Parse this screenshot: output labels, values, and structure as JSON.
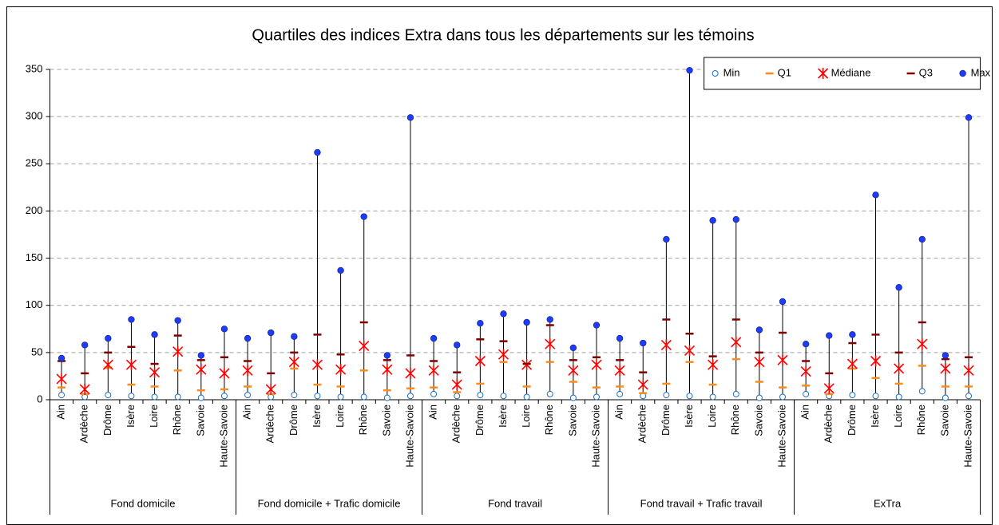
{
  "chart_data": {
    "type": "highlow",
    "title": "Quartiles des indices Extra dans tous les départements sur les témoins",
    "groups": [
      "Fond domicile",
      "Fond domicile + Trafic domicile",
      "Fond travail",
      "Fond travail + Trafic travail",
      "ExTra"
    ],
    "categories": [
      "Ain",
      "Ardèche",
      "Drôme",
      "Isère",
      "Loire",
      "Rhône",
      "Savoie",
      "Haute-Savoie",
      "Ain",
      "Ardèche",
      "Drôme",
      "Isère",
      "Loire",
      "Rhône",
      "Savoie",
      "Haute-Savoie",
      "Ain",
      "Ardèche",
      "Drôme",
      "Isère",
      "Loire",
      "Rhône",
      "Savoie",
      "Haute-Savoie",
      "Ain",
      "Ardèche",
      "Drôme",
      "Isère",
      "Loire",
      "Rhône",
      "Savoie",
      "Haute-Savoie",
      "Ain",
      "Ardèche",
      "Drôme",
      "Isère",
      "Loire",
      "Rhône",
      "Savoie",
      "Haute-Savoie"
    ],
    "series": [
      {
        "name": "Min",
        "color": "#1f6fc5",
        "marker": "circle-open",
        "values": [
          5,
          3,
          5,
          4,
          3,
          3,
          2,
          4,
          5,
          3,
          5,
          4,
          3,
          3,
          2,
          4,
          6,
          4,
          5,
          4,
          3,
          6,
          2,
          3,
          6,
          4,
          5,
          4,
          3,
          6,
          2,
          3,
          6,
          4,
          5,
          4,
          3,
          9,
          2,
          4
        ]
      },
      {
        "name": "Q1",
        "color": "#ff8c1a",
        "marker": "dash",
        "values": [
          13,
          6,
          34,
          16,
          14,
          31,
          10,
          11,
          14,
          6,
          33,
          16,
          14,
          31,
          10,
          12,
          13,
          8,
          17,
          40,
          14,
          40,
          19,
          13,
          14,
          7,
          17,
          40,
          16,
          43,
          19,
          13,
          15,
          6,
          33,
          23,
          17,
          36,
          14,
          14
        ]
      },
      {
        "name": "Médiane",
        "color": "#ff0000",
        "marker": "star",
        "values": [
          22,
          11,
          37,
          37,
          29,
          51,
          32,
          28,
          31,
          11,
          40,
          37,
          32,
          57,
          32,
          28,
          31,
          16,
          41,
          48,
          37,
          59,
          31,
          37,
          31,
          16,
          58,
          52,
          37,
          61,
          40,
          42,
          30,
          12,
          38,
          41,
          33,
          59,
          33,
          31
        ]
      },
      {
        "name": "Q3",
        "color": "#800000",
        "marker": "dash",
        "values": [
          41,
          28,
          50,
          56,
          38,
          68,
          42,
          45,
          41,
          28,
          50,
          69,
          48,
          82,
          42,
          47,
          41,
          29,
          64,
          62,
          38,
          79,
          42,
          45,
          42,
          29,
          85,
          70,
          46,
          85,
          50,
          71,
          41,
          28,
          60,
          69,
          50,
          82,
          43,
          45
        ]
      },
      {
        "name": "Max",
        "color": "#1e3cff",
        "marker": "circle",
        "values": [
          44,
          58,
          65,
          85,
          69,
          84,
          47,
          75,
          65,
          71,
          67,
          262,
          137,
          194,
          47,
          299,
          65,
          58,
          81,
          91,
          82,
          85,
          55,
          79,
          65,
          60,
          170,
          349,
          190,
          191,
          74,
          104,
          59,
          68,
          69,
          217,
          119,
          170,
          47,
          299
        ]
      }
    ],
    "ylim": [
      0,
      350
    ],
    "yticks": [
      0,
      50,
      100,
      150,
      200,
      250,
      300,
      350
    ],
    "grid": true,
    "legend": "top-right"
  }
}
